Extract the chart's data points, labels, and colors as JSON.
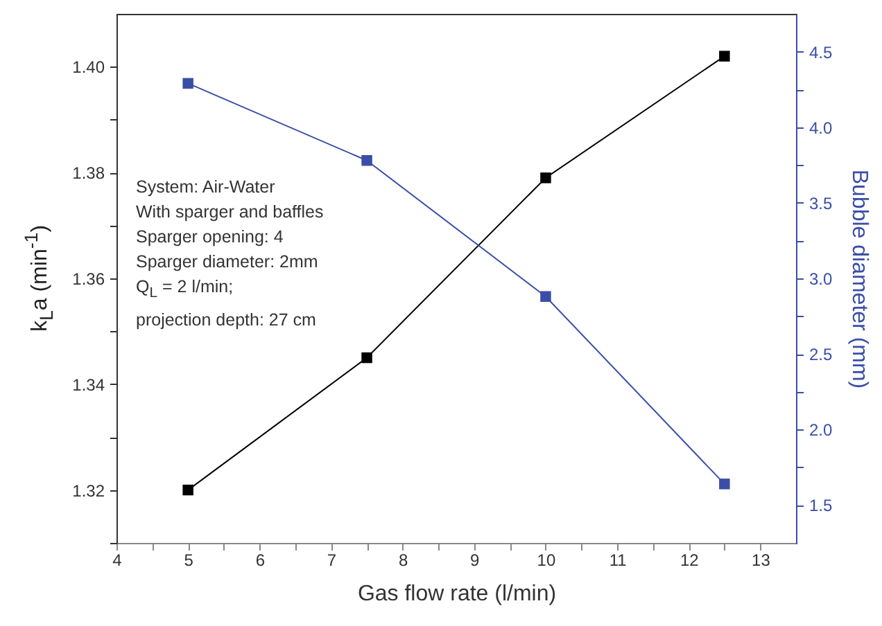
{
  "chart_data": {
    "type": "line",
    "xlabel": "Gas flow rate (l/min)",
    "ylabel": "k$_{L}$a (min$^{-1}$)",
    "y2label": "Bubble diameter (mm)",
    "x": [
      5,
      7.5,
      10,
      12.5
    ],
    "series": [
      {
        "color": "#000000",
        "values": [
          1.32,
          1.345,
          1.379,
          1.402
        ]
      },
      {
        "color": "#3a4ea8",
        "axis": "y2",
        "values": [
          4.29,
          3.78,
          2.88,
          1.64
        ]
      }
    ],
    "xlim": [
      4,
      13.5
    ],
    "xticks": [
      4,
      {
        "value": 4.5,
        "label": null
      },
      5,
      {
        "value": 5.5,
        "label": null
      },
      6,
      {
        "value": 6.5,
        "label": null
      },
      7,
      {
        "value": 7.5,
        "label": null
      },
      8,
      {
        "value": 8.5,
        "label": null
      },
      9,
      {
        "value": 9.5,
        "label": null
      },
      10,
      {
        "value": 10.5,
        "label": null
      },
      11,
      {
        "value": 11.5,
        "label": null
      },
      12,
      {
        "value": 12.5,
        "label": null
      },
      13
    ],
    "ylim": [
      1.31,
      1.41
    ],
    "yticks": [
      {
        "value": 1.31,
        "label": null
      },
      {
        "value": 1.32,
        "label": "1.32"
      },
      {
        "value": 1.33,
        "label": null
      },
      {
        "value": 1.34,
        "label": "1.34"
      },
      {
        "value": 1.35,
        "label": null
      },
      {
        "value": 1.36,
        "label": "1.36"
      },
      {
        "value": 1.37,
        "label": null
      },
      {
        "value": 1.38,
        "label": "1.38"
      },
      {
        "value": 1.39,
        "label": null
      },
      {
        "value": 1.4,
        "label": "1.40"
      }
    ],
    "y2lim": [
      1.25,
      4.75
    ],
    "y2ticks": [
      1.5,
      {
        "value": 1.75,
        "label": null
      },
      {
        "value": 2,
        "label": "2.0"
      },
      {
        "value": 2.25,
        "label": null
      },
      2.5,
      {
        "value": 2.75,
        "label": null
      },
      {
        "value": 3,
        "label": "3.0"
      },
      {
        "value": 3.25,
        "label": null
      },
      3.5,
      {
        "value": 3.75,
        "label": null
      },
      {
        "value": 4,
        "label": "4.0"
      },
      {
        "value": 4.25,
        "label": null
      },
      4.5
    ],
    "marker": "square",
    "grid": false,
    "annotations": [
      "System: Air-Water",
      "With sparger and baffles",
      "Sparger opening: 4",
      "Sparger diameter: 2mm",
      "Q$_{L}$ = 2 l/min;",
      "projection depth: 27 cm"
    ]
  }
}
